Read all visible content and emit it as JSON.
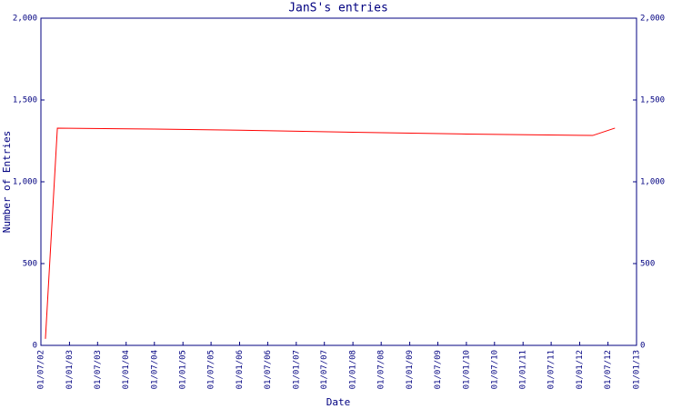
{
  "chart_data": {
    "type": "line",
    "title": "JanS's entries",
    "x_label": "Date",
    "y_label": "Number of Entries",
    "x": [
      "2002-07-30",
      "2002-10-15",
      "2004-07-01",
      "2006-01-01",
      "2008-01-01",
      "2010-01-01",
      "2012-03-25",
      "2012-08-15"
    ],
    "values": [
      40,
      1328,
      1322,
      1315,
      1303,
      1292,
      1283,
      1328
    ],
    "color": "#ff0000",
    "xlim": [
      "2002-07-01",
      "2013-01-01"
    ],
    "xticks": [
      {
        "value": "2002-07-01",
        "label": "01/07/02"
      },
      {
        "value": "2003-01-01",
        "label": "01/01/03"
      },
      {
        "value": "2003-07-01",
        "label": "01/07/03"
      },
      {
        "value": "2004-01-01",
        "label": "01/01/04"
      },
      {
        "value": "2004-07-01",
        "label": "01/07/04"
      },
      {
        "value": "2005-01-01",
        "label": "01/01/05"
      },
      {
        "value": "2005-07-01",
        "label": "01/07/05"
      },
      {
        "value": "2006-01-01",
        "label": "01/01/06"
      },
      {
        "value": "2006-07-01",
        "label": "01/07/06"
      },
      {
        "value": "2007-01-01",
        "label": "01/01/07"
      },
      {
        "value": "2007-07-01",
        "label": "01/07/07"
      },
      {
        "value": "2008-01-01",
        "label": "01/01/08"
      },
      {
        "value": "2008-07-01",
        "label": "01/07/08"
      },
      {
        "value": "2009-01-01",
        "label": "01/01/09"
      },
      {
        "value": "2009-07-01",
        "label": "01/07/09"
      },
      {
        "value": "2010-01-01",
        "label": "01/01/10"
      },
      {
        "value": "2010-07-01",
        "label": "01/07/10"
      },
      {
        "value": "2011-01-01",
        "label": "01/01/11"
      },
      {
        "value": "2011-07-01",
        "label": "01/07/11"
      },
      {
        "value": "2012-01-01",
        "label": "01/01/12"
      },
      {
        "value": "2012-07-01",
        "label": "01/07/12"
      },
      {
        "value": "2013-01-01",
        "label": "01/01/13"
      }
    ],
    "ylim": [
      0,
      2000
    ],
    "yticks": [
      0,
      500,
      {
        "value": 1000,
        "label": "1,000"
      },
      {
        "value": 1500,
        "label": "1,500"
      },
      {
        "value": 2000,
        "label": "2,000"
      }
    ]
  }
}
